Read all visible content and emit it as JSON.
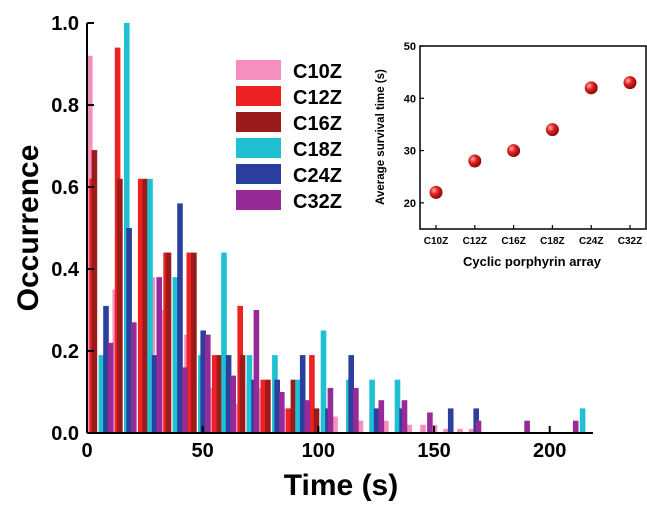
{
  "chart_data": [
    {
      "type": "bar",
      "xlabel": "Time (s)",
      "ylabel": "Occurrence",
      "xlim": [
        0,
        220
      ],
      "ylim": [
        0,
        1.0
      ],
      "xticks": [
        0,
        50,
        100,
        150,
        200
      ],
      "yticks": [
        0.0,
        0.2,
        0.4,
        0.6,
        0.8,
        1.0
      ],
      "tick_labels_y": [
        "0.0",
        "0.2",
        "0.4",
        "0.6",
        "0.8",
        "1.0"
      ],
      "tick_labels_x": [
        "0",
        "50",
        "100",
        "150",
        "200"
      ],
      "legend_position": "top-center",
      "series": [
        {
          "name": "C10Z",
          "color": "#f48fbf",
          "x": [
            0,
            6,
            11,
            16,
            22,
            27,
            32,
            37,
            42,
            48,
            53,
            58,
            64,
            69,
            74,
            80,
            85,
            90,
            96,
            101,
            106,
            112,
            117,
            122,
            128,
            133,
            138,
            144,
            149,
            154,
            160,
            165
          ],
          "values": [
            0.92,
            0.19,
            0.35,
            0.19,
            0.28,
            0.38,
            0.3,
            0.28,
            0.24,
            0.13,
            0.11,
            0.09,
            0.07,
            0.13,
            0.11,
            0.07,
            0.06,
            0.07,
            0.06,
            0.05,
            0.04,
            0.04,
            0.03,
            0.03,
            0.03,
            0.03,
            0.02,
            0.02,
            0.02,
            0.01,
            0.01,
            0.01
          ]
        },
        {
          "name": "C12Z",
          "color": "#ee2222",
          "x": [
            1,
            12,
            22,
            33,
            43,
            54,
            65,
            75,
            86,
            96
          ],
          "values": [
            0.62,
            0.94,
            0.62,
            0.44,
            0.44,
            0.19,
            0.31,
            0.13,
            0.06,
            0.19
          ]
        },
        {
          "name": "C16Z",
          "color": "#9b1a1a",
          "x": [
            2,
            13,
            24,
            34,
            45,
            56,
            66,
            77,
            88,
            98
          ],
          "values": [
            0.69,
            0.62,
            0.62,
            0.44,
            0.44,
            0.19,
            0.19,
            0.13,
            0.13,
            0.06
          ]
        },
        {
          "name": "C18Z",
          "color": "#1ec0d2",
          "x": [
            5,
            16,
            26,
            37,
            48,
            58,
            69,
            80,
            90,
            101,
            112,
            122,
            133,
            213
          ],
          "values": [
            0.19,
            1.0,
            0.62,
            0.38,
            0.19,
            0.44,
            0.19,
            0.19,
            0.13,
            0.25,
            0.13,
            0.13,
            0.13,
            0.06
          ]
        },
        {
          "name": "C24Z",
          "color": "#2a3f9e",
          "x": [
            7,
            17,
            28,
            39,
            49,
            60,
            71,
            81,
            92,
            103,
            113,
            124,
            135,
            156,
            167
          ],
          "values": [
            0.31,
            0.5,
            0.19,
            0.56,
            0.25,
            0.19,
            0.13,
            0.13,
            0.19,
            0.06,
            0.19,
            0.06,
            0.06,
            0.06,
            0.06
          ]
        },
        {
          "name": "C32Z",
          "color": "#962a96",
          "x": [
            9,
            19,
            30,
            41,
            51,
            62,
            72,
            83,
            94,
            104,
            115,
            126,
            136,
            147,
            168,
            189,
            210
          ],
          "values": [
            0.22,
            0.27,
            0.38,
            0.16,
            0.24,
            0.14,
            0.3,
            0.1,
            0.08,
            0.11,
            0.11,
            0.08,
            0.08,
            0.05,
            0.03,
            0.03,
            0.03
          ]
        }
      ]
    },
    {
      "type": "scatter",
      "xlabel": "Cyclic porphyrin array",
      "ylabel": "Average survival time (s)",
      "categories": [
        "C10Z",
        "C12Z",
        "C16Z",
        "C18Z",
        "C24Z",
        "C32Z"
      ],
      "values": [
        22,
        28,
        30,
        34,
        42,
        43
      ],
      "ylim": [
        15,
        50
      ],
      "yticks": [
        20,
        30,
        40,
        50
      ],
      "tick_labels_y": [
        "20",
        "30",
        "40",
        "50"
      ],
      "marker_color": "#e32222"
    }
  ]
}
